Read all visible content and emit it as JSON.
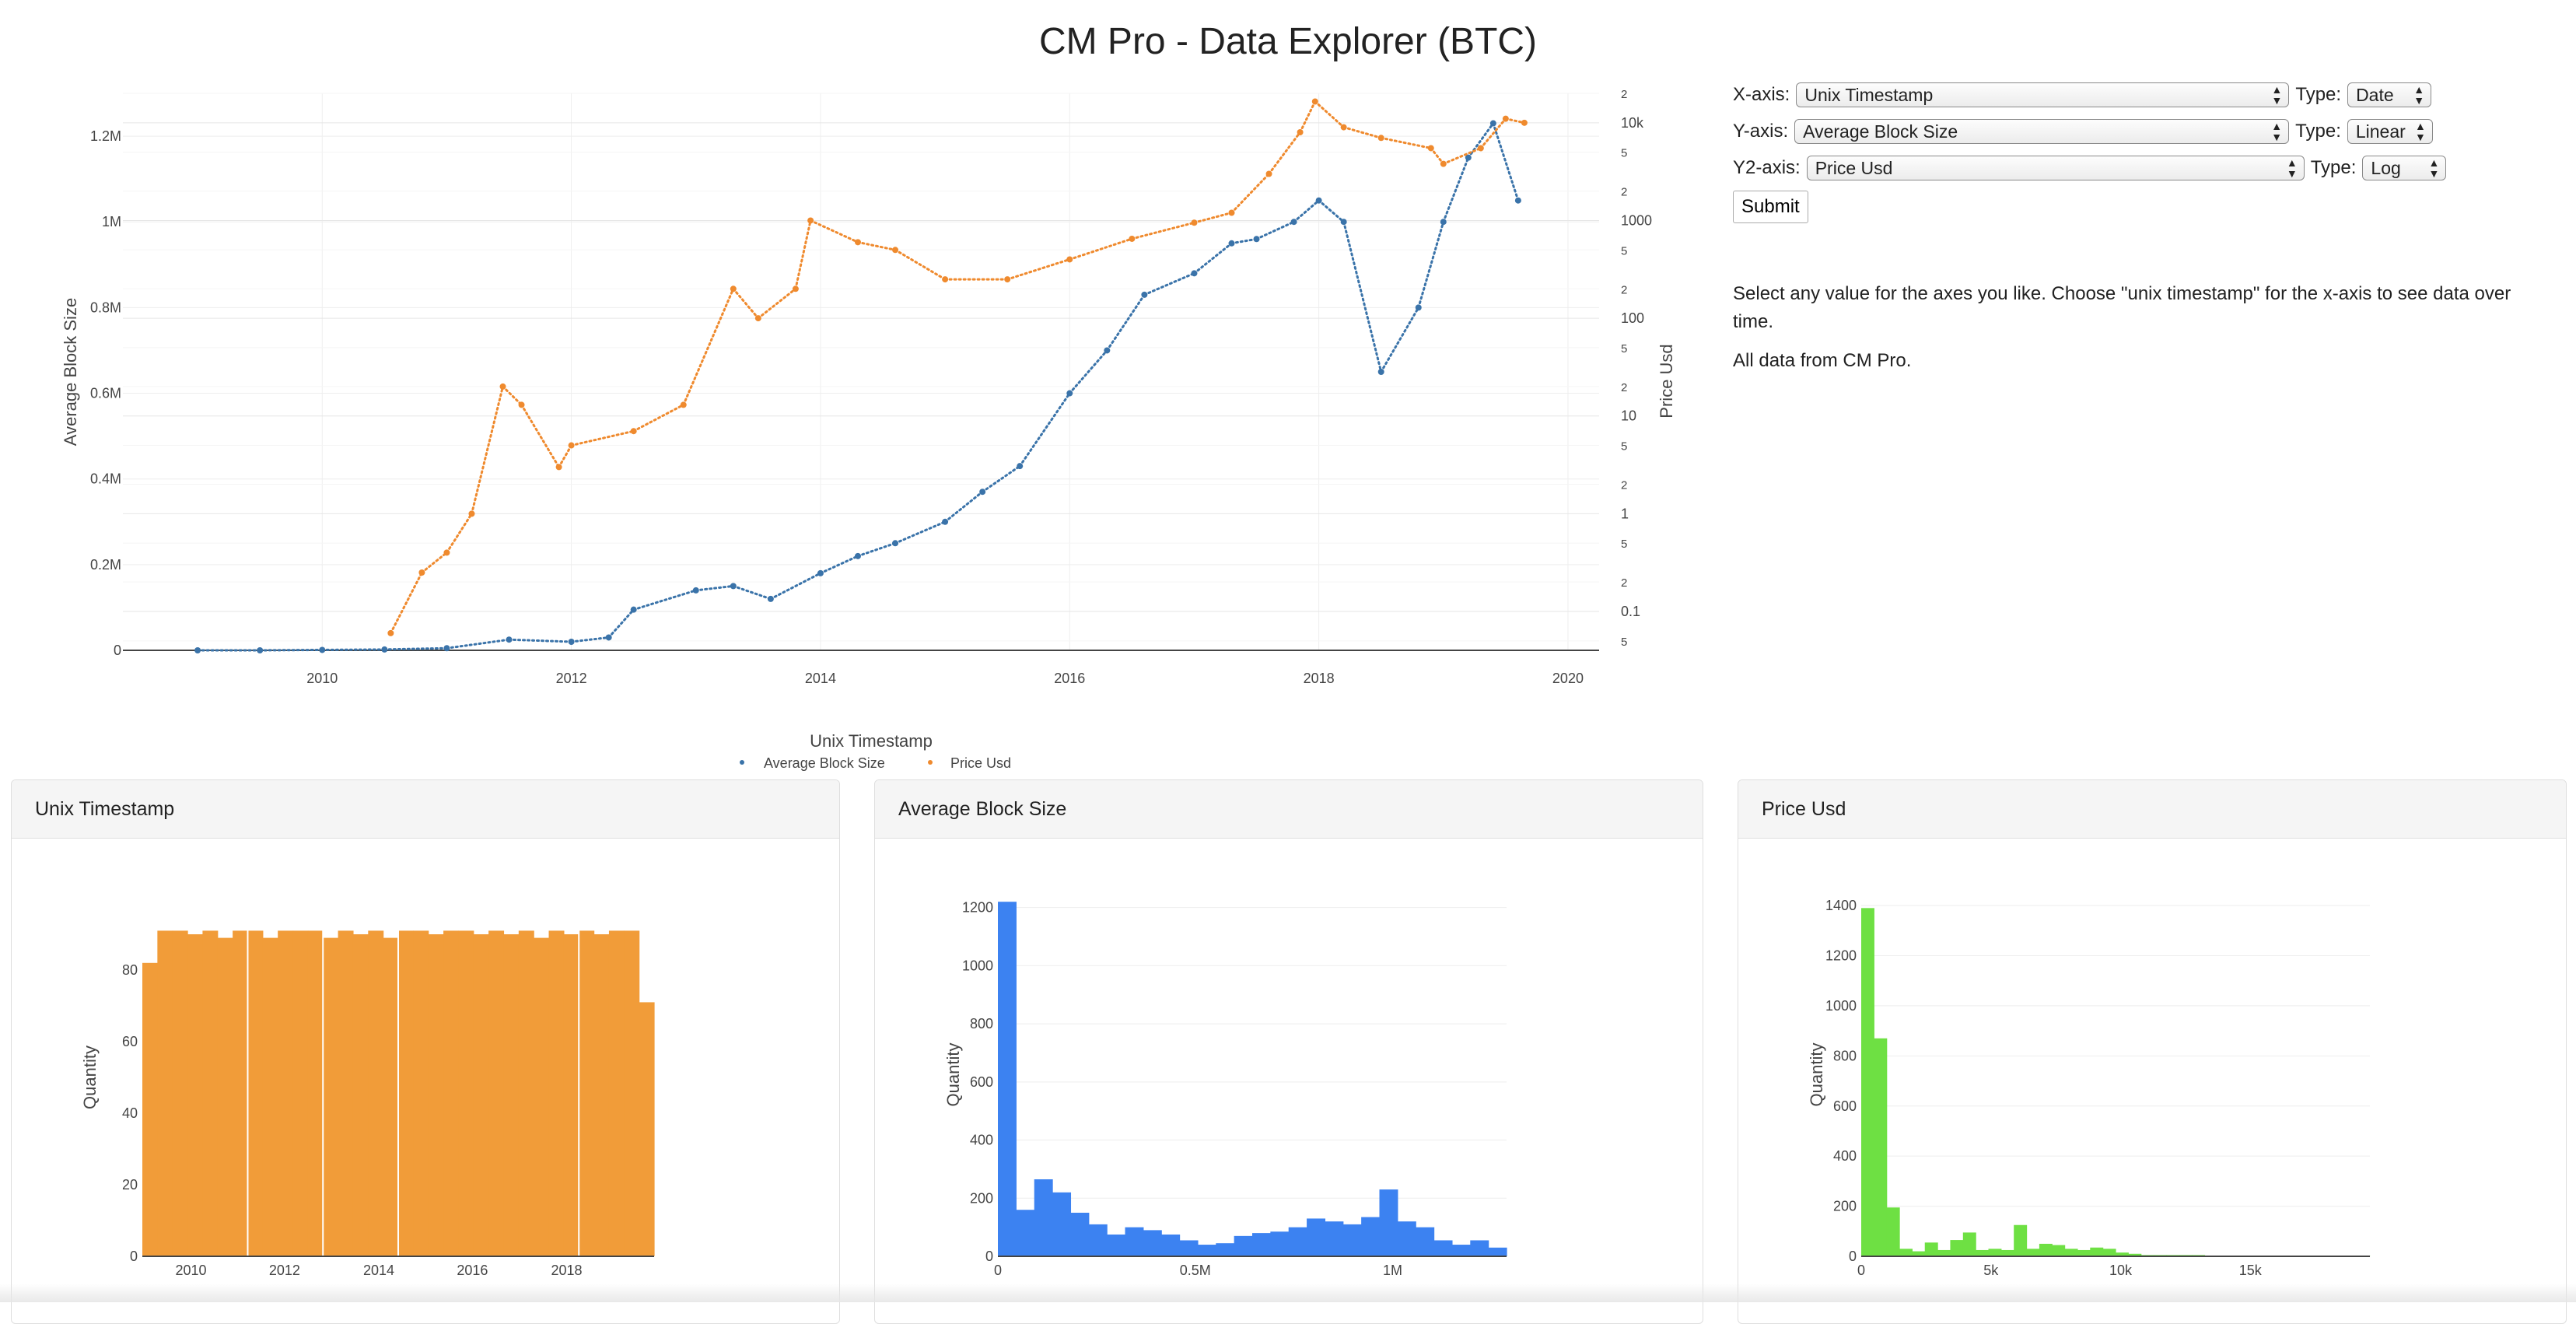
{
  "page": {
    "title": "CM Pro - Data Explorer (BTC)"
  },
  "controls": {
    "x_label": "X-axis:",
    "x_value": "Unix Timestamp",
    "x_type_label": "Type:",
    "x_type": "Date",
    "y_label": "Y-axis:",
    "y_value": "Average Block Size",
    "y_type_label": "Type:",
    "y_type": "Linear",
    "y2_label": "Y2-axis:",
    "y2_value": "Price Usd",
    "y2_type_label": "Type:",
    "y2_type": "Log",
    "submit_label": "Submit"
  },
  "info": {
    "line1": "Select any value for the axes you like. Choose \"unix timestamp\" for the x-axis to see data over time.",
    "line2": "All data from CM Pro."
  },
  "panels": {
    "timestamp_title": "Unix Timestamp",
    "blocksize_title": "Average Block Size",
    "price_title": "Price Usd"
  },
  "colors": {
    "block_size": "#3a73a9",
    "price": "#ef8a2e",
    "hist_timestamp": "#f19c39",
    "hist_blocksize": "#3c82f1",
    "hist_price": "#6ee043"
  },
  "chart_data": [
    {
      "type": "scatter",
      "xlabel": "Unix Timestamp",
      "ylabel": "Average Block Size",
      "y2label": "Price Usd",
      "x_scale": "date",
      "y_scale": "linear",
      "y2_scale": "log",
      "x_ticks": [
        "2010",
        "2012",
        "2014",
        "2016",
        "2018",
        "2020"
      ],
      "y_ticks": [
        "0",
        "0.2M",
        "0.4M",
        "0.6M",
        "0.8M",
        "1M",
        "1.2M"
      ],
      "y2_ticks": [
        "5",
        "0.1",
        "2",
        "5",
        "1",
        "2",
        "5",
        "10",
        "2",
        "5",
        "100",
        "2",
        "5",
        "1000",
        "2",
        "5",
        "10k",
        "2"
      ],
      "legend_position": "bottom-center",
      "series": [
        {
          "name": "Average Block Size",
          "marker": "dot",
          "x": [
            2009.0,
            2009.5,
            2010.0,
            2010.5,
            2011.0,
            2011.5,
            2012.0,
            2012.3,
            2012.5,
            2013.0,
            2013.3,
            2013.6,
            2014.0,
            2014.3,
            2014.6,
            2015.0,
            2015.3,
            2015.6,
            2016.0,
            2016.3,
            2016.6,
            2017.0,
            2017.3,
            2017.5,
            2017.8,
            2018.0,
            2018.2,
            2018.5,
            2018.8,
            2019.0,
            2019.2,
            2019.4,
            2019.6
          ],
          "y": [
            0,
            0,
            1000,
            2000,
            5000,
            25000,
            20000,
            30000,
            95000,
            140000,
            150000,
            120000,
            180000,
            220000,
            250000,
            300000,
            370000,
            430000,
            600000,
            700000,
            830000,
            880000,
            950000,
            960000,
            1000000,
            1050000,
            1000000,
            650000,
            800000,
            1000000,
            1150000,
            1230000,
            1050000
          ]
        },
        {
          "name": "Price Usd",
          "marker": "dot",
          "axis": "y2",
          "x": [
            2010.55,
            2010.8,
            2011.0,
            2011.2,
            2011.45,
            2011.6,
            2011.9,
            2012.0,
            2012.5,
            2012.9,
            2013.3,
            2013.5,
            2013.8,
            2013.92,
            2014.3,
            2014.6,
            2015.0,
            2015.5,
            2016.0,
            2016.5,
            2017.0,
            2017.3,
            2017.6,
            2017.85,
            2017.97,
            2018.2,
            2018.5,
            2018.9,
            2019.0,
            2019.3,
            2019.5,
            2019.65
          ],
          "y": [
            0.06,
            0.25,
            0.4,
            1,
            20,
            13,
            3,
            5,
            7,
            13,
            200,
            100,
            200,
            1000,
            600,
            500,
            250,
            250,
            400,
            650,
            950,
            1200,
            3000,
            8000,
            16500,
            9000,
            7000,
            5500,
            3800,
            5500,
            11000,
            10000
          ]
        }
      ]
    },
    {
      "type": "bar",
      "title": "Unix Timestamp",
      "ylabel": "Quantity",
      "x_ticks": [
        "2010",
        "2012",
        "2014",
        "2016",
        "2018"
      ],
      "y_ticks": [
        "0",
        "20",
        "40",
        "60",
        "80"
      ],
      "values": [
        82,
        91,
        91,
        90,
        91,
        89,
        91,
        91,
        89,
        91,
        91,
        91,
        89,
        91,
        90,
        91,
        89,
        91,
        91,
        90,
        91,
        91,
        90,
        91,
        90,
        91,
        89,
        91,
        90,
        91,
        90,
        91,
        91,
        71
      ]
    },
    {
      "type": "bar",
      "title": "Average Block Size",
      "ylabel": "Quantity",
      "x_ticks": [
        "0",
        "0.5M",
        "1M"
      ],
      "y_ticks": [
        "0",
        "200",
        "400",
        "600",
        "800",
        "1000",
        "1200"
      ],
      "values": [
        1220,
        160,
        265,
        220,
        150,
        110,
        75,
        100,
        90,
        75,
        55,
        40,
        45,
        70,
        80,
        85,
        100,
        130,
        120,
        110,
        135,
        230,
        120,
        100,
        55,
        40,
        55,
        30
      ]
    },
    {
      "type": "bar",
      "title": "Price Usd",
      "ylabel": "Quantity",
      "x_ticks": [
        "0",
        "5k",
        "10k",
        "15k"
      ],
      "y_ticks": [
        "0",
        "200",
        "400",
        "600",
        "800",
        "1000",
        "1200",
        "1400"
      ],
      "values": [
        1390,
        870,
        195,
        30,
        20,
        55,
        25,
        65,
        95,
        25,
        30,
        25,
        125,
        30,
        50,
        45,
        30,
        25,
        35,
        30,
        15,
        10,
        5,
        5,
        5,
        5,
        5,
        3,
        3,
        3,
        3,
        2,
        2,
        2,
        2,
        1,
        1,
        1,
        1,
        1
      ]
    }
  ]
}
